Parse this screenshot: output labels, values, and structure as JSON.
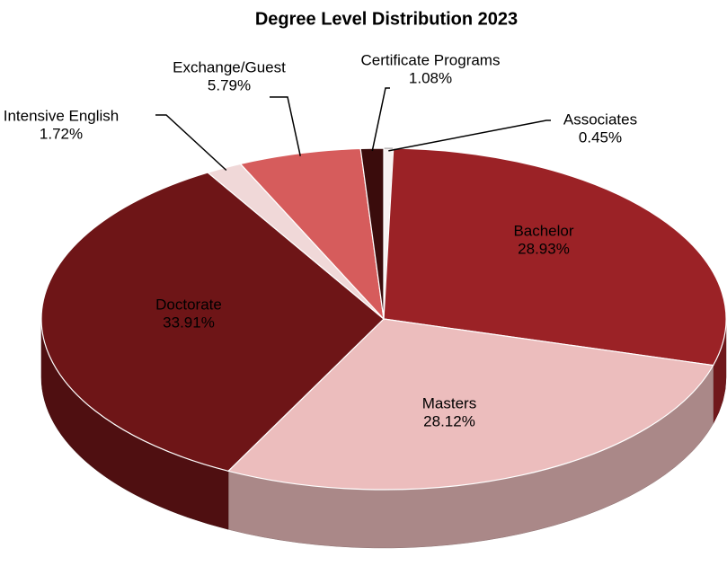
{
  "chart_data": {
    "type": "pie3d",
    "title": "Degree Level Distribution 2023",
    "categories": [
      "Associates",
      "Bachelor",
      "Masters",
      "Doctorate",
      "Intensive English",
      "Exchange/Guest",
      "Certificate Programs"
    ],
    "values": [
      0.45,
      28.93,
      28.12,
      33.91,
      1.72,
      5.79,
      1.08
    ],
    "value_labels": [
      "0.45%",
      "28.93%",
      "28.12%",
      "33.91%",
      "1.72%",
      "5.79%",
      "1.08%"
    ],
    "colors": [
      "#f7f2f2",
      "#9b2226",
      "#ecbdbd",
      "#6e1517",
      "#f0d8d8",
      "#d65c5c",
      "#3a0c0c"
    ]
  }
}
